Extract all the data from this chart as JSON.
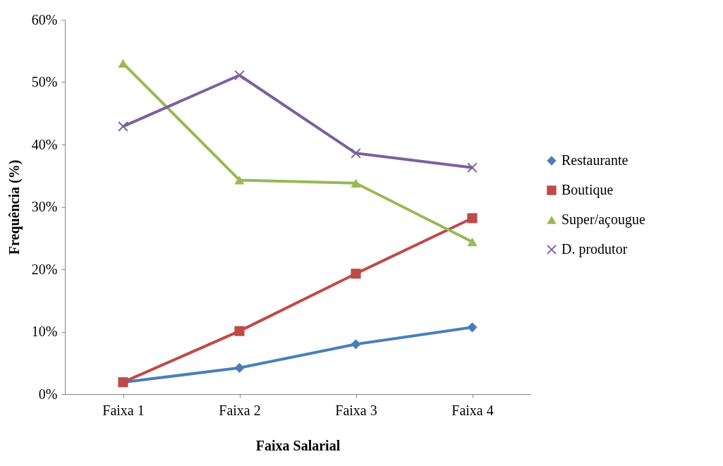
{
  "chart_data": {
    "type": "line",
    "xlabel": "Faixa Salarial",
    "ylabel": "Frequência (%)",
    "categories": [
      "Faixa 1",
      "Faixa 2",
      "Faixa 3",
      "Faixa 4"
    ],
    "series": [
      {
        "name": "Restaurante",
        "color": "#4a7ebb",
        "marker": "diamond",
        "values": [
          1.9,
          4.2,
          8.0,
          10.7
        ]
      },
      {
        "name": "Boutique",
        "color": "#be4b48",
        "marker": "square",
        "values": [
          1.9,
          10.1,
          19.3,
          28.2
        ]
      },
      {
        "name": "Super/açougue",
        "color": "#98b954",
        "marker": "triangle",
        "values": [
          53.0,
          34.3,
          33.8,
          24.4
        ]
      },
      {
        "name": "D. produtor",
        "color": "#7d60a0",
        "marker": "cross",
        "values": [
          42.9,
          51.1,
          38.6,
          36.3
        ]
      }
    ],
    "ylim": [
      0,
      60
    ],
    "yticks": [
      {
        "value": 0,
        "label": "0%"
      },
      {
        "value": 10,
        "label": "10%"
      },
      {
        "value": 20,
        "label": "20%"
      },
      {
        "value": 30,
        "label": "30%"
      },
      {
        "value": 40,
        "label": "40%"
      },
      {
        "value": 50,
        "label": "50%"
      },
      {
        "value": 60,
        "label": "60%"
      }
    ],
    "grid": false,
    "legend": "right",
    "line_style": "solid"
  }
}
